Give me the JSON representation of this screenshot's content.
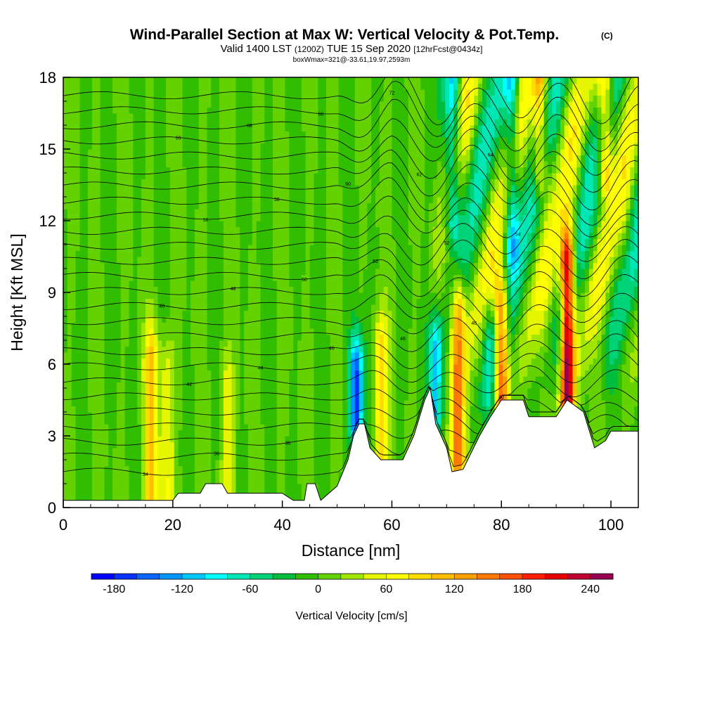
{
  "chart_data": {
    "type": "heatmap",
    "title": "Wind-Parallel Section at Max W: Vertical Velocity & Pot.Temp.",
    "title_mark": "(C)",
    "subtitle_main": "Valid 1400 LST",
    "subtitle_utc": "(1200Z)",
    "subtitle_date": "TUE 15 Sep 2020",
    "subtitle_fcst": "[12hrFcst@0434z]",
    "subtitle_box": "boxWmax=321@-33.61,19.97,2593m",
    "xlabel": "Distance [nm]",
    "ylabel": "Height [Kft MSL]",
    "xlim": [
      0,
      105
    ],
    "ylim": [
      0,
      18
    ],
    "x_ticks": [
      "0",
      "20",
      "40",
      "60",
      "80",
      "100"
    ],
    "y_ticks": [
      "0",
      "3",
      "6",
      "9",
      "12",
      "15",
      "18"
    ],
    "colorbar": {
      "label": "Vertical Velocity [cm/s]",
      "min": -180,
      "max": 260,
      "step": 20,
      "tick_labels": [
        "-180",
        "-120",
        "-60",
        "0",
        "60",
        "120",
        "180",
        "240"
      ],
      "colors": [
        "#0000ff",
        "#0a32ff",
        "#0a64ff",
        "#0096ff",
        "#00c8ff",
        "#00ffff",
        "#00e6b4",
        "#00d278",
        "#00be3c",
        "#32be00",
        "#64d200",
        "#a0e600",
        "#e6f500",
        "#ffff00",
        "#ffdc00",
        "#ffbe00",
        "#ffa000",
        "#ff7800",
        "#ff5000",
        "#ff1e00",
        "#e60000",
        "#be0032",
        "#960050"
      ]
    },
    "terrain_kft": [
      [
        0,
        0.3
      ],
      [
        20,
        0.3
      ],
      [
        21,
        0.6
      ],
      [
        25,
        0.6
      ],
      [
        26,
        1.0
      ],
      [
        29,
        1.0
      ],
      [
        30,
        0.6
      ],
      [
        40,
        0.6
      ],
      [
        42,
        0.3
      ],
      [
        44,
        0.3
      ],
      [
        44.5,
        1.0
      ],
      [
        46,
        1.0
      ],
      [
        47,
        0.3
      ],
      [
        50,
        0.9
      ],
      [
        52,
        2.0
      ],
      [
        53,
        3.0
      ],
      [
        54,
        3.5
      ],
      [
        55,
        3.5
      ],
      [
        56,
        2.5
      ],
      [
        58,
        2.0
      ],
      [
        62,
        2.0
      ],
      [
        64,
        3.0
      ],
      [
        66,
        4.5
      ],
      [
        67,
        5.0
      ],
      [
        68,
        3.5
      ],
      [
        70,
        2.5
      ],
      [
        71,
        1.5
      ],
      [
        73,
        1.6
      ],
      [
        76,
        3.0
      ],
      [
        78,
        3.8
      ],
      [
        80,
        4.5
      ],
      [
        84,
        4.5
      ],
      [
        85,
        3.8
      ],
      [
        90,
        3.8
      ],
      [
        92,
        4.5
      ],
      [
        95,
        4.0
      ],
      [
        97,
        2.5
      ],
      [
        99,
        2.8
      ],
      [
        100,
        3.2
      ],
      [
        105,
        3.2
      ]
    ],
    "updraft_cores": [
      {
        "x": 16,
        "z0": 0.5,
        "z1": 6.0,
        "w": 105
      },
      {
        "x": 19,
        "z0": 0.5,
        "z1": 5.5,
        "w": 60
      },
      {
        "x": 30,
        "z0": 0.6,
        "z1": 5.0,
        "w": 50
      },
      {
        "x": 58,
        "z0": 2.0,
        "z1": 6.5,
        "w": 90
      },
      {
        "x": 72,
        "z0": 2.0,
        "z1": 8.0,
        "w": 160
      },
      {
        "x": 80,
        "z0": 4.0,
        "z1": 8.0,
        "w": 175
      },
      {
        "x": 92,
        "z0": 4.5,
        "z1": 10.0,
        "w": 260
      },
      {
        "x": 99,
        "z0": 14.0,
        "z1": 18.0,
        "w": 110
      },
      {
        "x": 87,
        "z0": 14.0,
        "z1": 18.0,
        "w": 110
      }
    ],
    "downdraft_cores": [
      {
        "x": 53.5,
        "z0": 3.5,
        "z1": 5.5,
        "w": -170
      },
      {
        "x": 68,
        "z0": 4.0,
        "z1": 6.5,
        "w": -110
      },
      {
        "x": 82,
        "z0": 11.0,
        "z1": 18.0,
        "w": -90
      },
      {
        "x": 71,
        "z0": 12.0,
        "z1": 18.0,
        "w": -70
      },
      {
        "x": 78,
        "z0": 4.5,
        "z1": 7.0,
        "w": -80
      }
    ],
    "isentrope_labels": [
      "34",
      "36",
      "36",
      "38",
      "40",
      "40",
      "42",
      "44",
      "46",
      "46",
      "46",
      "48",
      "48",
      "50",
      "52",
      "52",
      "54",
      "56",
      "58",
      "60",
      "62",
      "64",
      "66",
      "68",
      "68",
      "72"
    ],
    "isentrope_count": 26
  }
}
